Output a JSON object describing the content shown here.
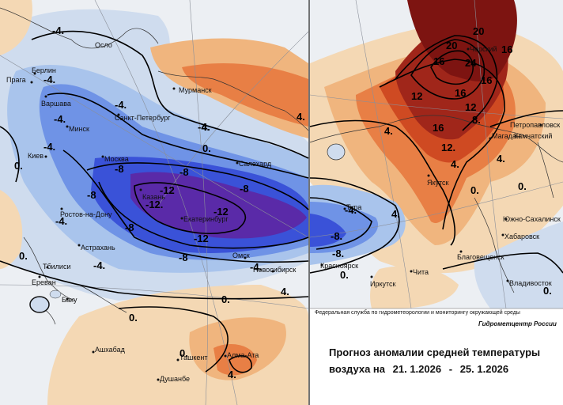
{
  "colors": {
    "cold_deep": "#5a2aa8",
    "cold_strong": "#3a52d8",
    "cold_mid": "#6f93e6",
    "cold_light": "#a9c4ec",
    "cold_pale": "#cfdcee",
    "neutral": "#eceff3",
    "warm_pale": "#f4d8b4",
    "warm_light": "#f0b57e",
    "warm_mid": "#e87f45",
    "warm_strong": "#cf4a22",
    "warm_deep": "#a0261a",
    "warm_extreme": "#7d1411"
  },
  "cities": [
    {
      "id": "oslo",
      "label": "Осло"
    },
    {
      "id": "berlin",
      "label": "Берлин"
    },
    {
      "id": "praga",
      "label": "Прага"
    },
    {
      "id": "varshava",
      "label": "Варшава"
    },
    {
      "id": "minsk",
      "label": "Минск"
    },
    {
      "id": "kiev",
      "label": "Киев"
    },
    {
      "id": "moskva",
      "label": "Москва"
    },
    {
      "id": "spb",
      "label": "Санкт-Петербург"
    },
    {
      "id": "murmansk",
      "label": "Мурманск"
    },
    {
      "id": "salekhard",
      "label": "Салехард"
    },
    {
      "id": "kazan",
      "label": "Казань"
    },
    {
      "id": "ekb",
      "label": "Екатеринбург"
    },
    {
      "id": "rostov",
      "label": "Ростов-на-Дону"
    },
    {
      "id": "astrakhan",
      "label": "Астрахань"
    },
    {
      "id": "tbilisi",
      "label": "Тбилиси"
    },
    {
      "id": "erevan",
      "label": "Ереван"
    },
    {
      "id": "baku",
      "label": "Баку"
    },
    {
      "id": "ashkhabad",
      "label": "Ашхабад"
    },
    {
      "id": "tashkent",
      "label": "Ташкент"
    },
    {
      "id": "dushanbe",
      "label": "Душанбе"
    },
    {
      "id": "almaata",
      "label": "Алма-Ата"
    },
    {
      "id": "omsk",
      "label": "Омск"
    },
    {
      "id": "novosibirsk",
      "label": "Новосибирск"
    },
    {
      "id": "krasnoyarsk",
      "label": "Красноярск"
    },
    {
      "id": "tura",
      "label": "Тура"
    },
    {
      "id": "irkutsk",
      "label": "Иркутск"
    },
    {
      "id": "chita",
      "label": "Чита"
    },
    {
      "id": "yakutsk",
      "label": "Якутск"
    },
    {
      "id": "magadan",
      "label": "Магадан"
    },
    {
      "id": "petropavlovsk",
      "label": "Петропавловск"
    },
    {
      "id": "kamchatsky",
      "label": "Камчатский"
    },
    {
      "id": "yuzhno",
      "label": "Южно-Сахалинск"
    },
    {
      "id": "khabarovsk",
      "label": "Хабаровск"
    },
    {
      "id": "blagoveshchensk",
      "label": "Благовещенск"
    },
    {
      "id": "vladivostok",
      "label": "Владивосток"
    },
    {
      "id": "chersky",
      "label": "Черский"
    }
  ],
  "isoline_labels": [
    "-4.",
    "0.",
    "4.",
    "-8",
    "-12.",
    "-12",
    "8",
    "12",
    "16",
    "20",
    "24",
    "-8.",
    "8.",
    "12.",
    "16."
  ],
  "credit_agency": "Федеральная служба по гидрометеорологии и мониторингу окружающей среды",
  "credit_center": "Гидрометцентр России",
  "title_line1": "Прогноз аномалии средней температуры",
  "title_prefix": "воздуха на",
  "date_from": "21. 1.2026",
  "date_separator": "-",
  "date_to": "25. 1.2026"
}
